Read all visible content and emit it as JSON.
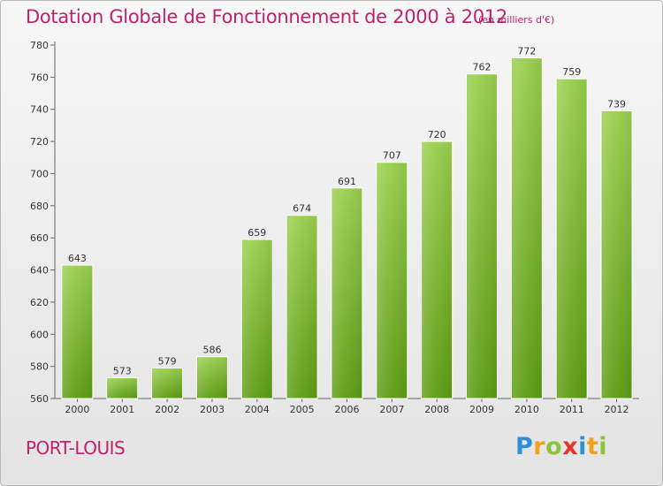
{
  "header": {
    "title": "Dotation Globale de Fonctionnement de 2000 à 2012",
    "subtitle": "(en milliers d'€)"
  },
  "footer": {
    "city": "PORT-LOUIS",
    "brand_letters": [
      {
        "char": "P",
        "color": "#2f8fd6"
      },
      {
        "char": "r",
        "color": "#f0a21b"
      },
      {
        "char": "o",
        "color": "#8cc43c"
      },
      {
        "char": "x",
        "color": "#e8342a"
      },
      {
        "char": "i",
        "color": "#2f8fd6"
      },
      {
        "char": "t",
        "color": "#f0a21b"
      },
      {
        "char": "i",
        "color": "#8cc43c"
      }
    ]
  },
  "colors": {
    "accent": "#c0226a",
    "bar_top": "#9acf4e",
    "bar_bottom": "#5e9c15"
  },
  "chart_data": {
    "type": "bar",
    "title": "Dotation Globale de Fonctionnement de 2000 à 2012",
    "subtitle": "(en milliers d'€)",
    "xlabel": "",
    "ylabel": "",
    "categories": [
      "2000",
      "2001",
      "2002",
      "2003",
      "2004",
      "2005",
      "2006",
      "2007",
      "2008",
      "2009",
      "2010",
      "2011",
      "2012"
    ],
    "values": [
      643,
      573,
      579,
      586,
      659,
      674,
      691,
      707,
      720,
      762,
      772,
      759,
      739
    ],
    "ylim": [
      560,
      780
    ],
    "yticks": [
      560,
      580,
      600,
      620,
      640,
      660,
      680,
      700,
      720,
      740,
      760,
      780
    ],
    "grid": false,
    "data_labels": true
  }
}
